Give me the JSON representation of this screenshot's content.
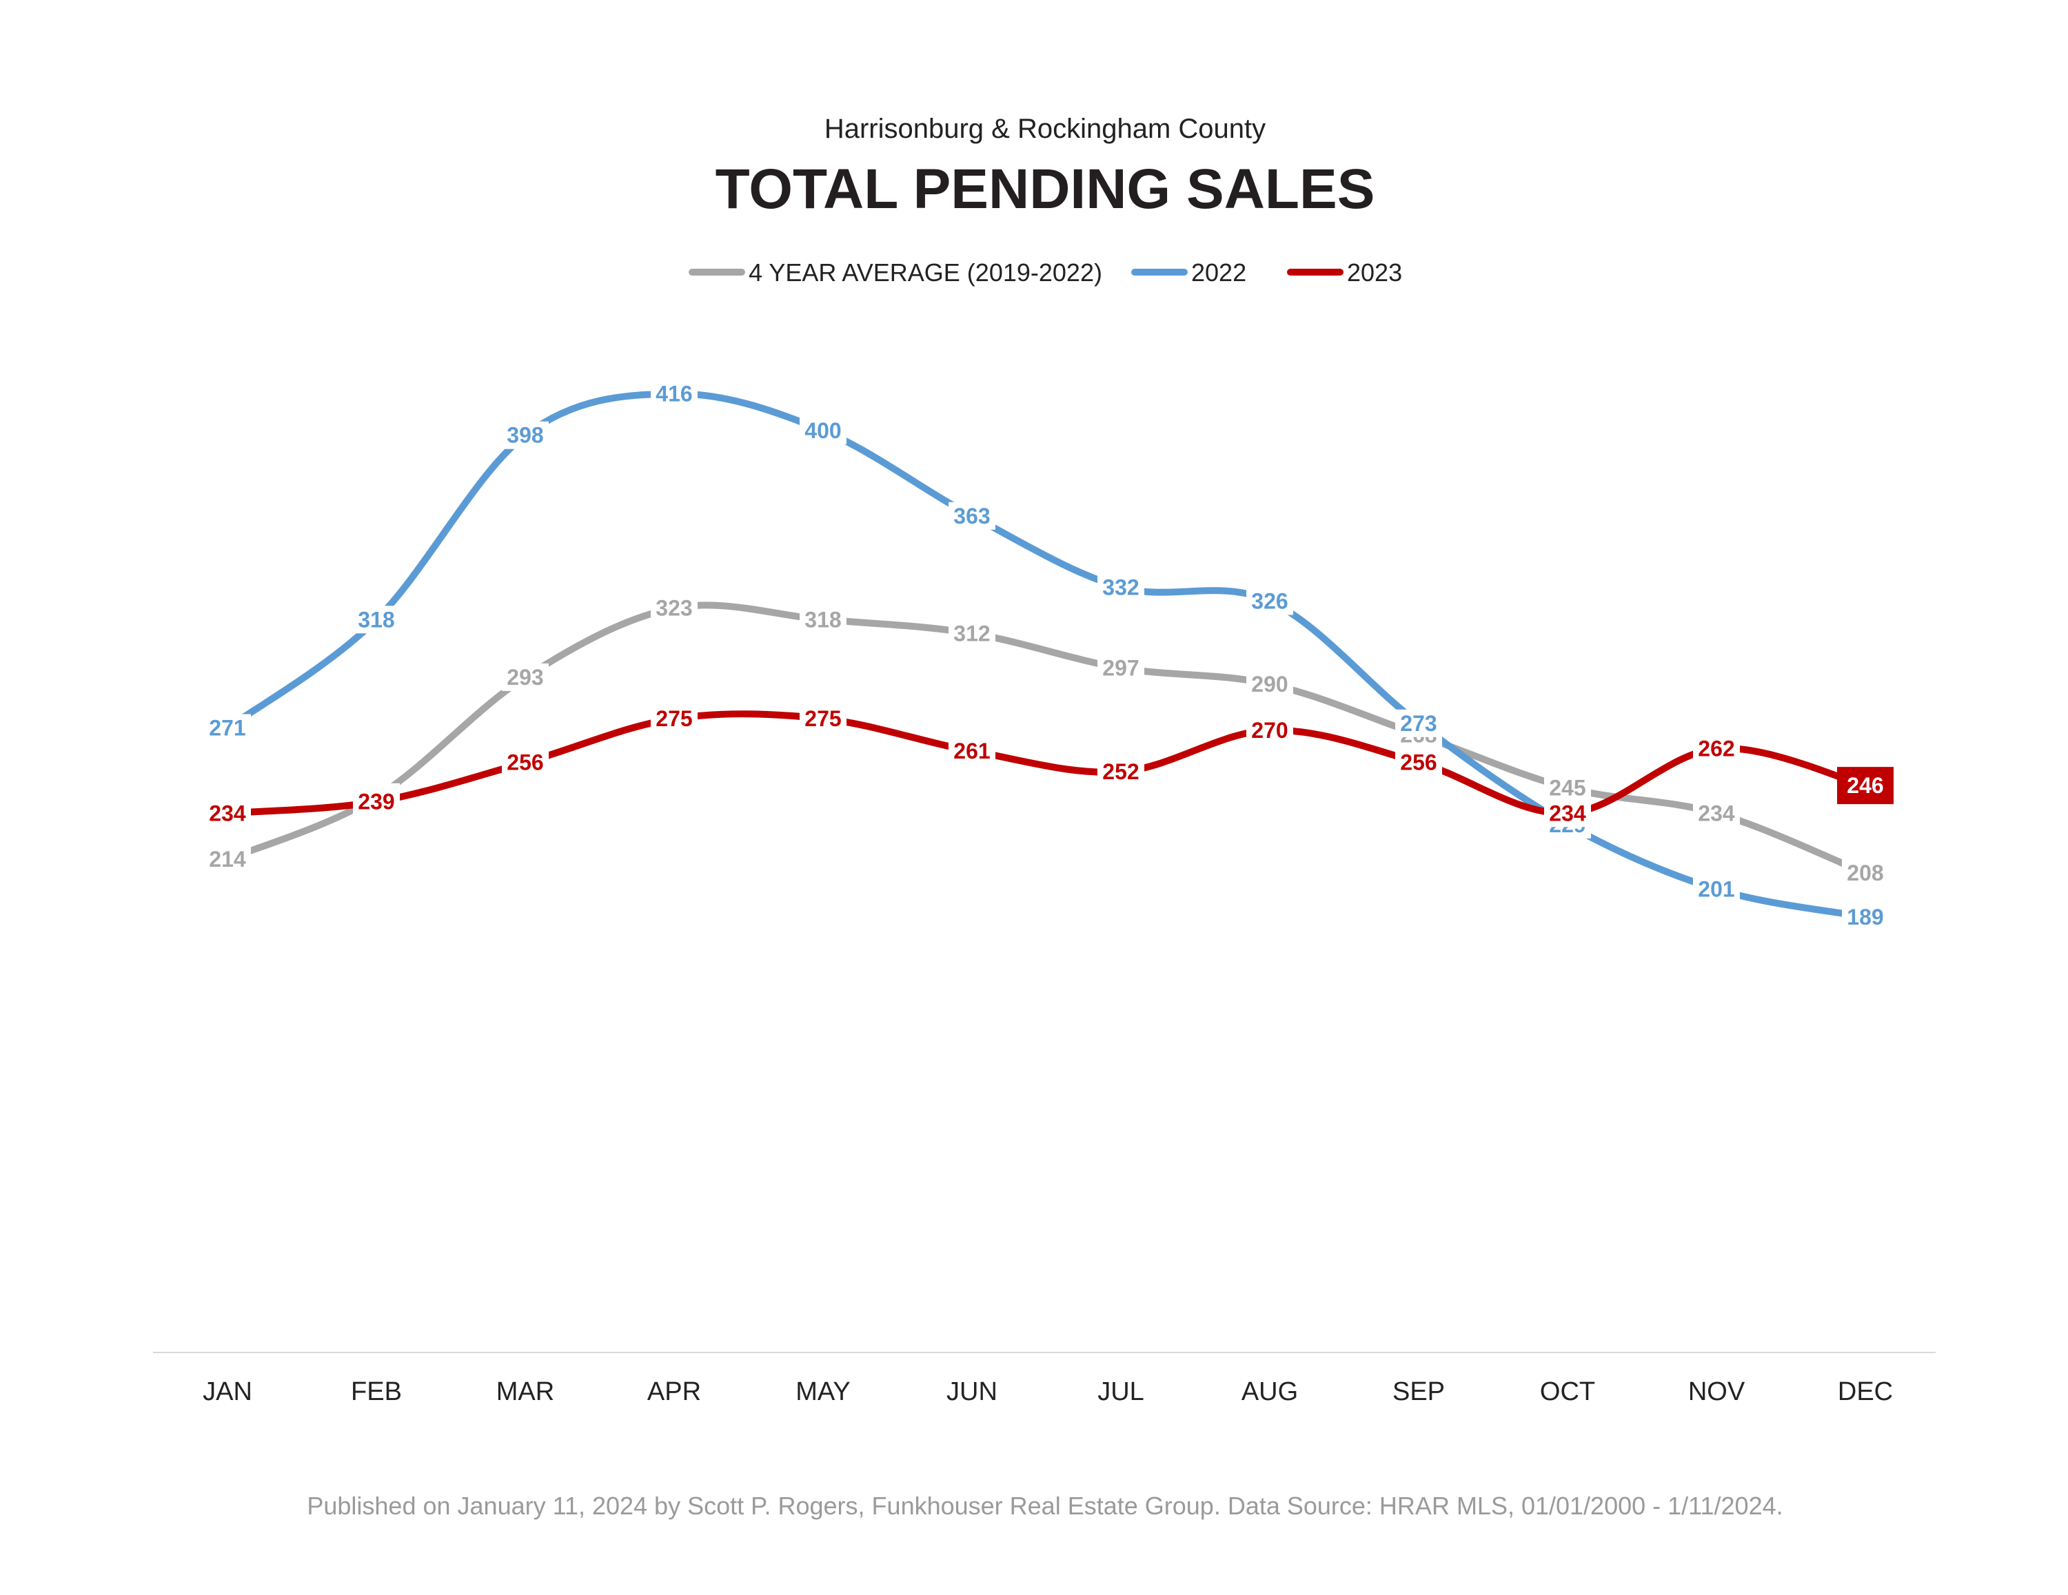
{
  "header": {
    "subtitle": "Harrisonburg & Rockingham County"
  },
  "footer": {
    "text": "Published on January 11, 2024 by Scott P. Rogers, Funkhouser Real Estate Group. Data Source: HRAR MLS, 01/01/2000 - 1/11/2024."
  },
  "colors": {
    "avg": "#a6a6a6",
    "y2022": "#5b9bd5",
    "y2023": "#c00000",
    "axis": "#d9d9d9",
    "background": "#ffffff"
  },
  "chart_data": {
    "type": "line",
    "title": "TOTAL PENDING SALES",
    "subtitle": "Harrisonburg & Rockingham County",
    "categories": [
      "JAN",
      "FEB",
      "MAR",
      "APR",
      "MAY",
      "JUN",
      "JUL",
      "AUG",
      "SEP",
      "OCT",
      "NOV",
      "DEC"
    ],
    "series": [
      {
        "name": "4 YEAR AVERAGE (2019-2022)",
        "color": "#a6a6a6",
        "values": [
          214,
          241,
          293,
          323,
          318,
          312,
          297,
          290,
          268,
          245,
          234,
          208
        ]
      },
      {
        "name": "2022",
        "color": "#5b9bd5",
        "values": [
          271,
          318,
          398,
          416,
          400,
          363,
          332,
          326,
          273,
          229,
          201,
          189
        ]
      },
      {
        "name": "2023",
        "color": "#c00000",
        "values": [
          234,
          239,
          256,
          275,
          275,
          261,
          252,
          270,
          256,
          234,
          262,
          246
        ],
        "highlight_last": true
      }
    ],
    "xlabel": "",
    "ylabel": "",
    "ylim": [
      0,
      430
    ],
    "grid": false,
    "legend_position": "top-center",
    "smooth": true,
    "data_labels": true
  }
}
